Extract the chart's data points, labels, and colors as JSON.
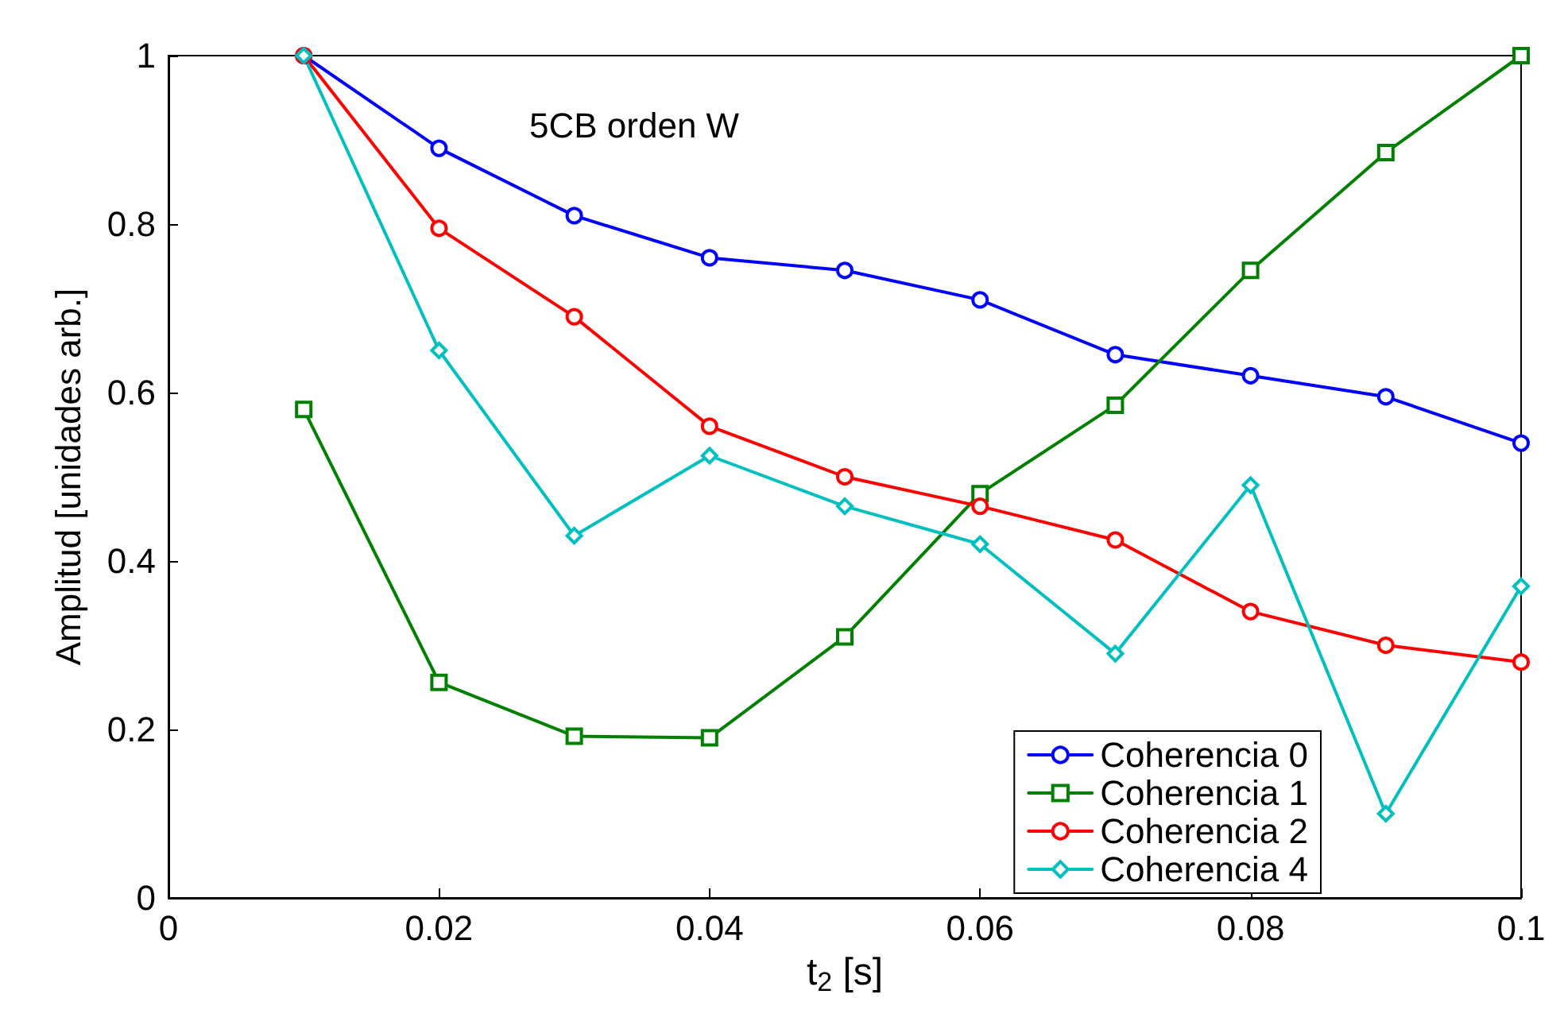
{
  "chart_data": {
    "type": "line",
    "xlabel": "t$_{2}$ [s]",
    "ylabel": "Amplitud [unidades arb.]",
    "annotations": [
      "5CB orden W"
    ],
    "x": [
      0.01,
      0.02,
      0.03,
      0.04,
      0.05,
      0.06,
      0.07,
      0.08,
      0.09,
      0.1
    ],
    "series": [
      {
        "name": "Coherencia 0",
        "color": "#0000ff",
        "marker": "circle",
        "values": [
          1.0,
          0.89,
          0.81,
          0.76,
          0.745,
          0.71,
          0.645,
          0.62,
          0.595,
          0.54
        ]
      },
      {
        "name": "Coherencia 1",
        "color": "#008000",
        "marker": "square",
        "values": [
          0.58,
          0.256,
          0.192,
          0.19,
          0.31,
          0.48,
          0.585,
          0.745,
          0.885,
          1.0
        ]
      },
      {
        "name": "Coherencia 2",
        "color": "#ff0000",
        "marker": "circle",
        "values": [
          1.0,
          0.795,
          0.69,
          0.56,
          0.5,
          0.465,
          0.425,
          0.34,
          0.3,
          0.28
        ]
      },
      {
        "name": "Coherencia 4",
        "color": "#00bfbf",
        "marker": "diamond",
        "values": [
          1.0,
          0.65,
          0.43,
          0.525,
          0.465,
          0.42,
          0.29,
          0.49,
          0.1,
          0.37
        ]
      }
    ],
    "xlim": [
      0,
      0.1
    ],
    "xticks": [
      0,
      0.02,
      0.04,
      0.06,
      0.08,
      0.1
    ],
    "ylim": [
      0,
      1
    ],
    "yticks": [
      0,
      0.2,
      0.4,
      0.6,
      0.8,
      1
    ],
    "grid": false,
    "legend": "bottom right",
    "line_style": "solid"
  }
}
